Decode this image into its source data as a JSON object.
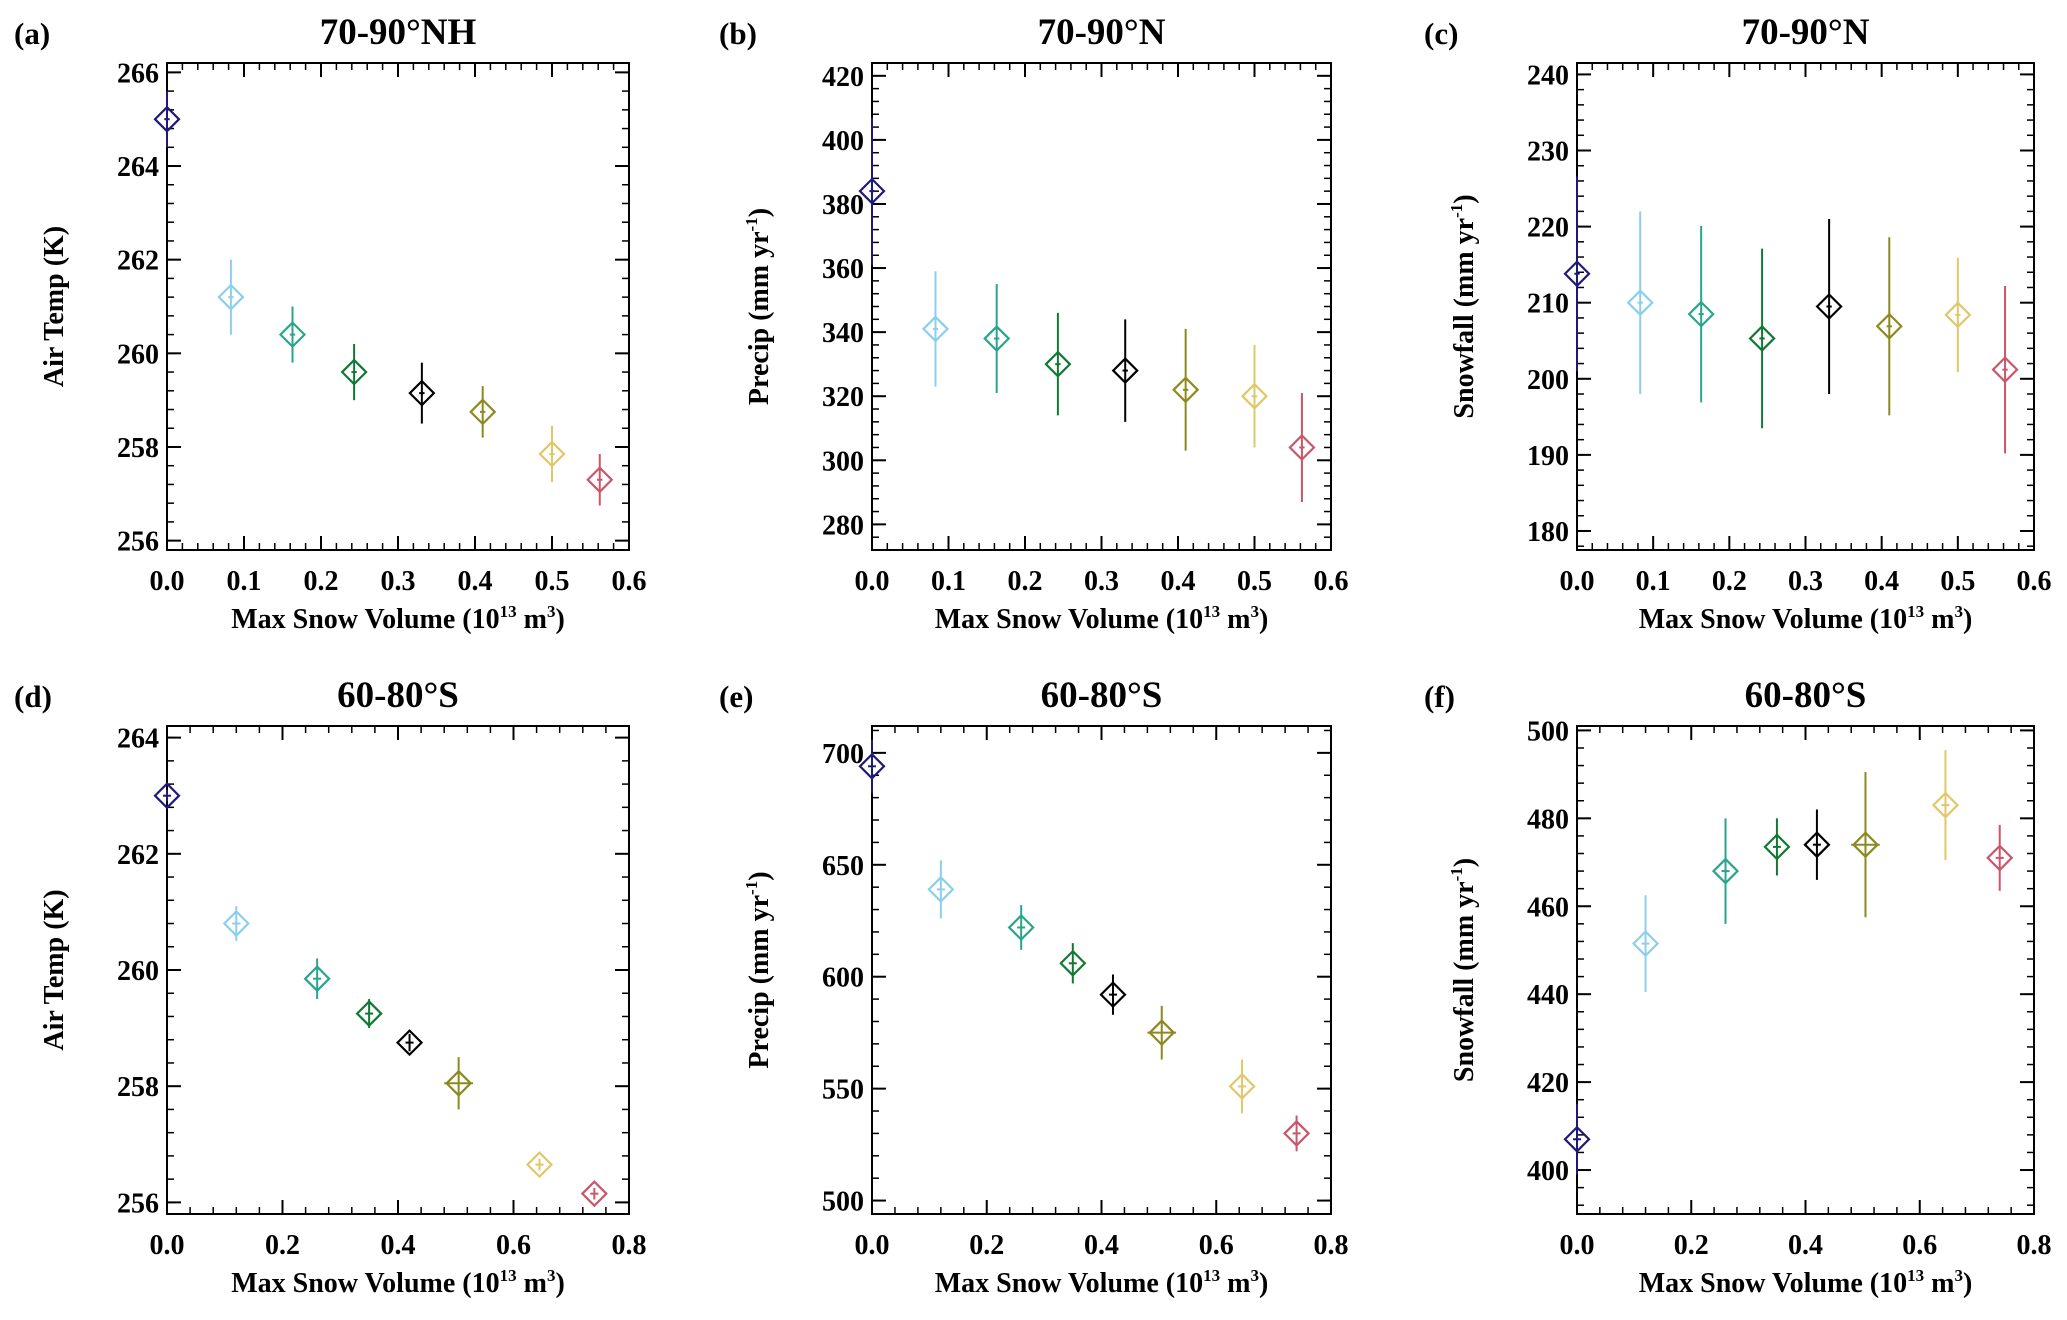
{
  "colors": [
    "#1f1a7a",
    "#8ccfea",
    "#2aa58c",
    "#117a32",
    "#000000",
    "#8c8a1e",
    "#e0c768",
    "#c9566a"
  ],
  "panels": [
    {
      "label": "(a)",
      "title": "70-90°NH",
      "ylabel": "Air Temp (K)",
      "ylabel_sup": "",
      "ylabel_end": "",
      "xlabel": "Max Snow Volume (10",
      "xlabel_sup1": "13",
      "xlabel_mid": " m",
      "xlabel_sup2": "3",
      "xlabel_end": ")",
      "xlim": [
        0,
        0.6
      ],
      "ylim": [
        255.8,
        266.2
      ],
      "xticks": [
        0.0,
        0.1,
        0.2,
        0.3,
        0.4,
        0.5,
        0.6
      ],
      "xtick_labels": [
        "0.0",
        "0.1",
        "0.2",
        "0.3",
        "0.4",
        "0.5",
        "0.6"
      ],
      "yticks": [
        256,
        258,
        260,
        262,
        264,
        266
      ],
      "ytick_labels": [
        "256",
        "258",
        "260",
        "262",
        "264",
        "266"
      ],
      "x": [
        0.0,
        0.083,
        0.163,
        0.243,
        0.331,
        0.41,
        0.5,
        0.562
      ],
      "y": [
        265.0,
        261.2,
        260.4,
        259.6,
        259.15,
        258.75,
        257.85,
        257.3
      ],
      "yerr": [
        0.6,
        0.8,
        0.6,
        0.6,
        0.65,
        0.55,
        0.6,
        0.55
      ],
      "xerr": [
        0,
        0,
        0,
        0,
        0,
        0,
        0,
        0
      ]
    },
    {
      "label": "(b)",
      "title": "70-90°N",
      "ylabel": "Precip (mm yr",
      "ylabel_sup": "-1",
      "ylabel_end": ")",
      "xlabel": "Max Snow Volume (10",
      "xlabel_sup1": "13",
      "xlabel_mid": " m",
      "xlabel_sup2": "3",
      "xlabel_end": ")",
      "xlim": [
        0,
        0.6
      ],
      "ylim": [
        272,
        424
      ],
      "xticks": [
        0.0,
        0.1,
        0.2,
        0.3,
        0.4,
        0.5,
        0.6
      ],
      "xtick_labels": [
        "0.0",
        "0.1",
        "0.2",
        "0.3",
        "0.4",
        "0.5",
        "0.6"
      ],
      "yticks": [
        280,
        300,
        320,
        340,
        360,
        380,
        400,
        420
      ],
      "ytick_labels": [
        "280",
        "300",
        "320",
        "340",
        "360",
        "380",
        "400",
        "420"
      ],
      "x": [
        0.0,
        0.083,
        0.163,
        0.243,
        0.331,
        0.41,
        0.5,
        0.562
      ],
      "y": [
        384,
        341,
        338,
        330,
        328,
        322,
        320,
        304
      ],
      "yerr": [
        23,
        18,
        17,
        16,
        16,
        19,
        16,
        17
      ],
      "xerr": [
        0,
        0,
        0,
        0,
        0,
        0,
        0,
        0
      ]
    },
    {
      "label": "(c)",
      "title": "70-90°N",
      "ylabel": "Snowfall (mm yr",
      "ylabel_sup": "-1",
      "ylabel_end": ")",
      "xlabel": "Max Snow Volume (10",
      "xlabel_sup1": "13",
      "xlabel_mid": " m",
      "xlabel_sup2": "3",
      "xlabel_end": ")",
      "xlim": [
        0,
        0.6
      ],
      "ylim": [
        177.5,
        241.5
      ],
      "xticks": [
        0.0,
        0.1,
        0.2,
        0.3,
        0.4,
        0.5,
        0.6
      ],
      "xtick_labels": [
        "0.0",
        "0.1",
        "0.2",
        "0.3",
        "0.4",
        "0.5",
        "0.6"
      ],
      "yticks": [
        180,
        190,
        200,
        210,
        220,
        230,
        240
      ],
      "ytick_labels": [
        "180",
        "190",
        "200",
        "210",
        "220",
        "230",
        "240"
      ],
      "x": [
        0.0,
        0.083,
        0.163,
        0.243,
        0.331,
        0.41,
        0.5,
        0.562
      ],
      "y": [
        213.8,
        210.0,
        208.5,
        205.3,
        209.5,
        206.9,
        208.4,
        201.2
      ],
      "yerr": [
        12.8,
        12.0,
        11.6,
        11.8,
        11.5,
        11.7,
        7.5,
        11.0
      ],
      "xerr": [
        0,
        0,
        0,
        0,
        0,
        0,
        0,
        0
      ]
    },
    {
      "label": "(d)",
      "title": "60-80°S",
      "ylabel": "Air Temp (K)",
      "ylabel_sup": "",
      "ylabel_end": "",
      "xlabel": "Max Snow Volume (10",
      "xlabel_sup1": "13",
      "xlabel_mid": " m",
      "xlabel_sup2": "3",
      "xlabel_end": ")",
      "xlim": [
        0,
        0.8
      ],
      "ylim": [
        255.8,
        264.2
      ],
      "xticks": [
        0.0,
        0.2,
        0.4,
        0.6,
        0.8
      ],
      "xtick_labels": [
        "0.0",
        "0.2",
        "0.4",
        "0.6",
        "0.8"
      ],
      "yticks": [
        256,
        258,
        260,
        262,
        264
      ],
      "ytick_labels": [
        "256",
        "258",
        "260",
        "262",
        "264"
      ],
      "x": [
        0.0,
        0.12,
        0.26,
        0.35,
        0.42,
        0.505,
        0.645,
        0.74
      ],
      "y": [
        263.0,
        260.8,
        259.85,
        259.25,
        258.75,
        258.05,
        256.65,
        256.15
      ],
      "yerr": [
        0.1,
        0.3,
        0.35,
        0.25,
        0.15,
        0.45,
        0.1,
        0.1
      ],
      "xerr": [
        0,
        0,
        0,
        0,
        0,
        0.025,
        0,
        0
      ]
    },
    {
      "label": "(e)",
      "title": "60-80°S",
      "ylabel": "Precip (mm yr",
      "ylabel_sup": "-1",
      "ylabel_end": ")",
      "xlabel": "Max Snow Volume (10",
      "xlabel_sup1": "13",
      "xlabel_mid": " m",
      "xlabel_sup2": "3",
      "xlabel_end": ")",
      "xlim": [
        0,
        0.8
      ],
      "ylim": [
        494,
        712
      ],
      "xticks": [
        0.0,
        0.2,
        0.4,
        0.6,
        0.8
      ],
      "xtick_labels": [
        "0.0",
        "0.2",
        "0.4",
        "0.6",
        "0.8"
      ],
      "yticks": [
        500,
        550,
        600,
        650,
        700
      ],
      "ytick_labels": [
        "500",
        "550",
        "600",
        "650",
        "700"
      ],
      "x": [
        0.0,
        0.12,
        0.26,
        0.35,
        0.42,
        0.505,
        0.645,
        0.74
      ],
      "y": [
        694,
        639,
        622,
        606,
        592,
        575,
        551,
        530
      ],
      "yerr": [
        12,
        13,
        10,
        9,
        9,
        12,
        12,
        8
      ],
      "xerr": [
        0,
        0,
        0,
        0,
        0,
        0.025,
        0,
        0
      ]
    },
    {
      "label": "(f)",
      "title": "60-80°S",
      "ylabel": "Snowfall (mm yr",
      "ylabel_sup": "-1",
      "ylabel_end": ")",
      "xlabel": "Max Snow Volume (10",
      "xlabel_sup1": "13",
      "xlabel_mid": " m",
      "xlabel_sup2": "3",
      "xlabel_end": ")",
      "xlim": [
        0,
        0.8
      ],
      "ylim": [
        390,
        501
      ],
      "xticks": [
        0.0,
        0.2,
        0.4,
        0.6,
        0.8
      ],
      "xtick_labels": [
        "0.0",
        "0.2",
        "0.4",
        "0.6",
        "0.8"
      ],
      "yticks": [
        400,
        420,
        440,
        460,
        480,
        500
      ],
      "ytick_labels": [
        "400",
        "420",
        "440",
        "460",
        "480",
        "500"
      ],
      "x": [
        0.0,
        0.12,
        0.26,
        0.35,
        0.42,
        0.505,
        0.645,
        0.74
      ],
      "y": [
        407,
        451.5,
        468,
        473.5,
        474,
        474,
        483,
        471
      ],
      "yerr": [
        8,
        11,
        12,
        6.5,
        8,
        16.5,
        12.5,
        7.5
      ],
      "xerr": [
        0,
        0,
        0,
        0,
        0,
        0.025,
        0,
        0
      ]
    }
  ],
  "chart_data": [
    {
      "type": "scatter",
      "title": "70-90°NH",
      "panel": "(a)",
      "xlabel": "Max Snow Volume (10^13 m^3)",
      "ylabel": "Air Temp (K)",
      "xlim": [
        0,
        0.6
      ],
      "ylim": [
        255.8,
        266.2
      ],
      "x": [
        0.0,
        0.083,
        0.163,
        0.243,
        0.331,
        0.41,
        0.5,
        0.562
      ],
      "y": [
        265.0,
        261.2,
        260.4,
        259.6,
        259.15,
        258.75,
        257.85,
        257.3
      ],
      "yerr": [
        0.6,
        0.8,
        0.6,
        0.6,
        0.65,
        0.55,
        0.6,
        0.55
      ]
    },
    {
      "type": "scatter",
      "title": "70-90°N",
      "panel": "(b)",
      "xlabel": "Max Snow Volume (10^13 m^3)",
      "ylabel": "Precip (mm yr^-1)",
      "xlim": [
        0,
        0.6
      ],
      "ylim": [
        272,
        424
      ],
      "x": [
        0.0,
        0.083,
        0.163,
        0.243,
        0.331,
        0.41,
        0.5,
        0.562
      ],
      "y": [
        384,
        341,
        338,
        330,
        328,
        322,
        320,
        304
      ],
      "yerr": [
        23,
        18,
        17,
        16,
        16,
        19,
        16,
        17
      ]
    },
    {
      "type": "scatter",
      "title": "70-90°N",
      "panel": "(c)",
      "xlabel": "Max Snow Volume (10^13 m^3)",
      "ylabel": "Snowfall (mm yr^-1)",
      "xlim": [
        0,
        0.6
      ],
      "ylim": [
        177.5,
        241.5
      ],
      "x": [
        0.0,
        0.083,
        0.163,
        0.243,
        0.331,
        0.41,
        0.5,
        0.562
      ],
      "y": [
        213.8,
        210.0,
        208.5,
        205.3,
        209.5,
        206.9,
        208.4,
        201.2
      ],
      "yerr": [
        12.8,
        12.0,
        11.6,
        11.8,
        11.5,
        11.7,
        7.5,
        11.0
      ]
    },
    {
      "type": "scatter",
      "title": "60-80°S",
      "panel": "(d)",
      "xlabel": "Max Snow Volume (10^13 m^3)",
      "ylabel": "Air Temp (K)",
      "xlim": [
        0,
        0.8
      ],
      "ylim": [
        255.8,
        264.2
      ],
      "x": [
        0.0,
        0.12,
        0.26,
        0.35,
        0.42,
        0.505,
        0.645,
        0.74
      ],
      "y": [
        263.0,
        260.8,
        259.85,
        259.25,
        258.75,
        258.05,
        256.65,
        256.15
      ],
      "yerr": [
        0.1,
        0.3,
        0.35,
        0.25,
        0.15,
        0.45,
        0.1,
        0.1
      ]
    },
    {
      "type": "scatter",
      "title": "60-80°S",
      "panel": "(e)",
      "xlabel": "Max Snow Volume (10^13 m^3)",
      "ylabel": "Precip (mm yr^-1)",
      "xlim": [
        0,
        0.8
      ],
      "ylim": [
        494,
        712
      ],
      "x": [
        0.0,
        0.12,
        0.26,
        0.35,
        0.42,
        0.505,
        0.645,
        0.74
      ],
      "y": [
        694,
        639,
        622,
        606,
        592,
        575,
        551,
        530
      ],
      "yerr": [
        12,
        13,
        10,
        9,
        9,
        12,
        12,
        8
      ]
    },
    {
      "type": "scatter",
      "title": "60-80°S",
      "panel": "(f)",
      "xlabel": "Max Snow Volume (10^13 m^3)",
      "ylabel": "Snowfall (mm yr^-1)",
      "xlim": [
        0,
        0.8
      ],
      "ylim": [
        390,
        501
      ],
      "x": [
        0.0,
        0.12,
        0.26,
        0.35,
        0.42,
        0.505,
        0.645,
        0.74
      ],
      "y": [
        407,
        451.5,
        468,
        473.5,
        474,
        474,
        483,
        471
      ],
      "yerr": [
        8,
        11,
        12,
        6.5,
        8,
        16.5,
        12.5,
        7.5
      ]
    }
  ]
}
